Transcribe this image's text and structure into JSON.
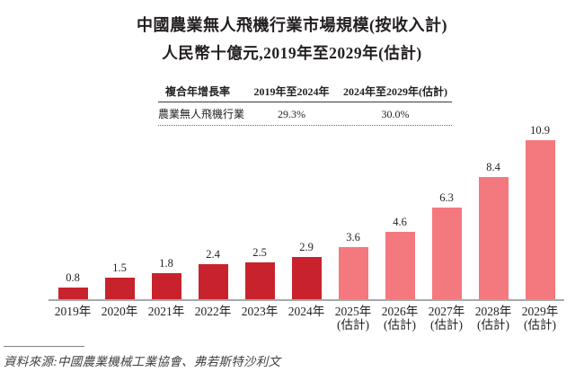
{
  "title": "中國農業無人飛機行業市場規模(按收入計)",
  "subtitle": "人民幣十億元,2019年至2029年(估計)",
  "cagr_table": {
    "headers": [
      "複合年增長率",
      "2019年至2024年",
      "2024年至2029年(估計)"
    ],
    "row_label": "農業無人飛機行業",
    "values": [
      "29.3%",
      "30.0%"
    ]
  },
  "chart_data": {
    "type": "bar",
    "title": "中國農業無人飛機行業市場規模(按收入計)",
    "unit_label": "人民幣十億元",
    "categories": [
      "2019年",
      "2020年",
      "2021年",
      "2022年",
      "2023年",
      "2024年",
      "2025年(估計)",
      "2026年(估計)",
      "2027年(估計)",
      "2028年(估計)",
      "2029年(估計)"
    ],
    "values": [
      0.8,
      1.5,
      1.8,
      2.4,
      2.5,
      2.9,
      3.6,
      4.6,
      6.3,
      8.4,
      10.9
    ],
    "ylim": [
      0,
      11
    ],
    "grid": false,
    "legend": "none",
    "estimate_note": "(估計)",
    "bars": [
      {
        "year": "2019年",
        "sub": "",
        "value": 0.8,
        "label": "0.8",
        "estimated": false
      },
      {
        "year": "2020年",
        "sub": "",
        "value": 1.5,
        "label": "1.5",
        "estimated": false
      },
      {
        "year": "2021年",
        "sub": "",
        "value": 1.8,
        "label": "1.8",
        "estimated": false
      },
      {
        "year": "2022年",
        "sub": "",
        "value": 2.4,
        "label": "2.4",
        "estimated": false
      },
      {
        "year": "2023年",
        "sub": "",
        "value": 2.5,
        "label": "2.5",
        "estimated": false
      },
      {
        "year": "2024年",
        "sub": "",
        "value": 2.9,
        "label": "2.9",
        "estimated": false
      },
      {
        "year": "2025年",
        "sub": "(估計)",
        "value": 3.6,
        "label": "3.6",
        "estimated": true
      },
      {
        "year": "2026年",
        "sub": "(估計)",
        "value": 4.6,
        "label": "4.6",
        "estimated": true
      },
      {
        "year": "2027年",
        "sub": "(估計)",
        "value": 6.3,
        "label": "6.3",
        "estimated": true
      },
      {
        "year": "2028年",
        "sub": "(估計)",
        "value": 8.4,
        "label": "8.4",
        "estimated": true
      },
      {
        "year": "2029年",
        "sub": "(估計)",
        "value": 10.9,
        "label": "10.9",
        "estimated": true
      }
    ],
    "colors": {
      "actual": "#C8232C",
      "estimate": "#F3797E",
      "axis": "#A7A9AC",
      "text": "#231F20"
    }
  },
  "source_note": "資料來源:中國農業機械工業協會、弗若斯特沙利文"
}
